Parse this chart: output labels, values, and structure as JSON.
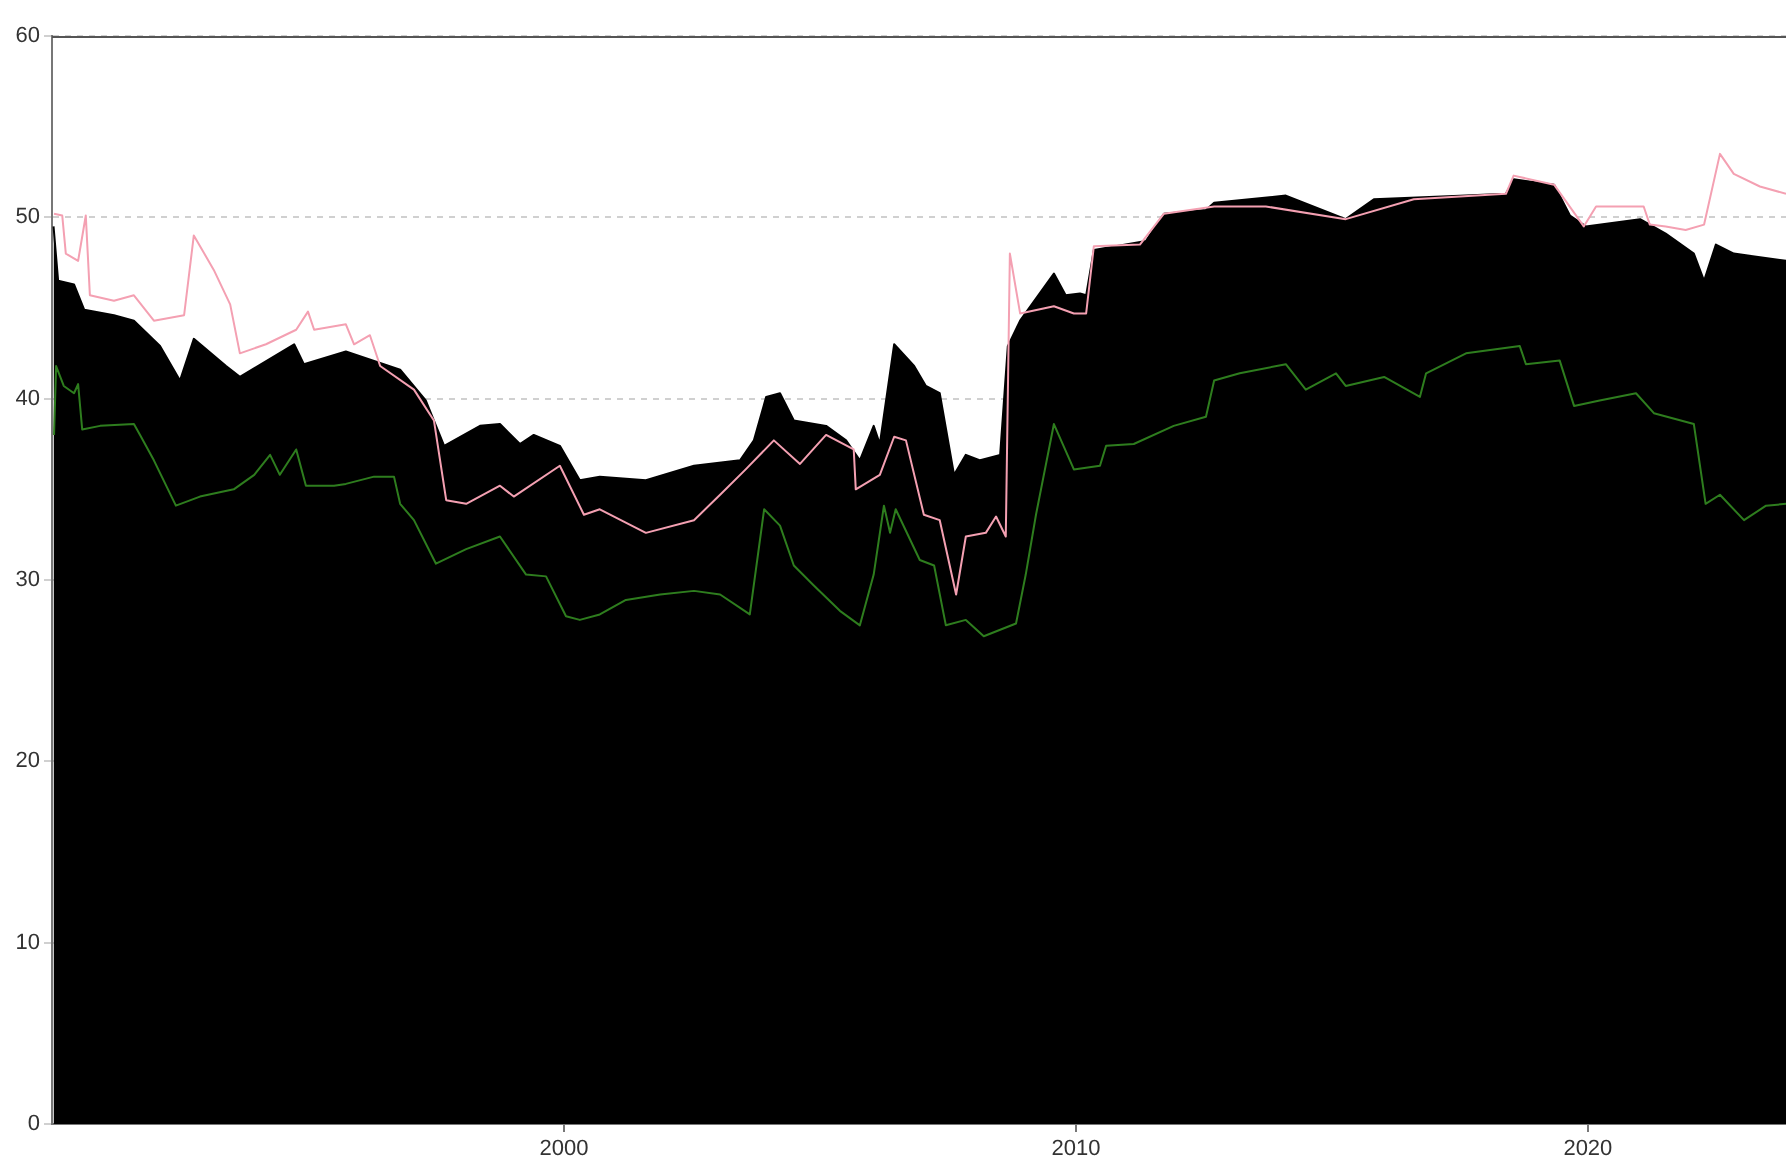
{
  "chart_data": {
    "type": "line",
    "xlim": [
      1990,
      2023.87
    ],
    "xticks": [
      2000,
      2010,
      2020
    ],
    "ylim": [
      0,
      60
    ],
    "yticks": [
      0,
      10,
      20,
      30,
      40,
      50,
      60
    ],
    "grid": "y",
    "legend": false,
    "marker": "none",
    "line_style": "solid",
    "series": [
      {
        "type": "area",
        "color": "#000000",
        "x": [
          1990.03,
          1990.12,
          1990.43,
          1990.63,
          1991.21,
          1991.6,
          1992.11,
          1992.5,
          1992.77,
          1993.4,
          1993.67,
          1994.73,
          1994.92,
          1995.74,
          1996.8,
          1997.3,
          1997.66,
          1998.36,
          1998.75,
          1999.14,
          1999.41,
          1999.92,
          2000.31,
          2000.7,
          2001.6,
          2002.54,
          2003.44,
          2003.71,
          2003.95,
          2004.22,
          2004.49,
          2005.12,
          2005.51,
          2005.78,
          2006.05,
          2006.17,
          2006.45,
          2006.84,
          2007.07,
          2007.34,
          2007.62,
          2007.85,
          2008.13,
          2008.52,
          2008.67,
          2008.91,
          2009.57,
          2009.8,
          2010.08,
          2010.2,
          2010.35,
          2011.37,
          2011.72,
          2012.54,
          2012.7,
          2014.1,
          2015.27,
          2015.82,
          2017.62,
          2018.4,
          2018.55,
          2019.34,
          2019.65,
          2019.96,
          2021.02,
          2021.52,
          2022.07,
          2022.27,
          2022.5,
          2022.85,
          2023.87
        ],
        "values": [
          49.5,
          46.5,
          46.3,
          44.9,
          44.6,
          44.3,
          42.9,
          41.0,
          43.3,
          41.8,
          41.2,
          43.0,
          41.9,
          42.6,
          41.6,
          39.9,
          37.4,
          38.5,
          38.6,
          37.5,
          38.0,
          37.4,
          35.5,
          35.7,
          35.5,
          36.3,
          36.6,
          37.7,
          40.1,
          40.3,
          38.8,
          38.5,
          37.7,
          36.6,
          38.5,
          37.5,
          43.0,
          41.8,
          40.7,
          40.3,
          35.8,
          36.9,
          36.6,
          36.9,
          42.9,
          44.3,
          46.9,
          45.7,
          45.8,
          45.7,
          48.2,
          48.7,
          50.2,
          50.4,
          50.8,
          51.2,
          49.9,
          51.0,
          51.2,
          51.3,
          52.1,
          51.8,
          50.1,
          49.5,
          49.9,
          49.1,
          48.0,
          46.5,
          48.5,
          48.0,
          47.6
        ]
      },
      {
        "color": "#f4a0b2",
        "x": [
          1990.04,
          1990.2,
          1990.27,
          1990.51,
          1990.66,
          1990.74,
          1991.21,
          1991.6,
          1991.99,
          1992.58,
          1992.77,
          1993.16,
          1993.48,
          1993.67,
          1994.18,
          1994.77,
          1995.0,
          1995.12,
          1995.74,
          1995.9,
          1996.21,
          1996.41,
          1997.07,
          1997.46,
          1997.7,
          1998.09,
          1998.75,
          1999.02,
          1999.92,
          2000.39,
          2000.7,
          2001.6,
          2002.54,
          2003.05,
          2003.55,
          2004.1,
          2004.61,
          2005.12,
          2005.66,
          2005.7,
          2006.17,
          2006.45,
          2006.68,
          2007.03,
          2007.34,
          2007.66,
          2007.85,
          2008.24,
          2008.44,
          2008.63,
          2008.71,
          2008.91,
          2009.57,
          2009.96,
          2010.2,
          2010.35,
          2011.25,
          2011.72,
          2012.7,
          2013.71,
          2015.27,
          2016.6,
          2018.4,
          2018.55,
          2019.34,
          2019.92,
          2020.16,
          2021.09,
          2021.21,
          2021.52,
          2021.91,
          2022.27,
          2022.58,
          2022.85,
          2023.36,
          2023.87
        ],
        "values": [
          50.2,
          50.1,
          48.0,
          47.6,
          50.1,
          45.7,
          45.4,
          45.7,
          44.3,
          44.6,
          49.0,
          47.1,
          45.2,
          42.5,
          43.0,
          43.8,
          44.8,
          43.8,
          44.1,
          43.0,
          43.5,
          41.8,
          40.5,
          38.8,
          34.4,
          34.2,
          35.2,
          34.6,
          36.3,
          33.6,
          33.9,
          32.6,
          33.3,
          34.7,
          36.1,
          37.7,
          36.4,
          38.0,
          37.2,
          35.0,
          35.8,
          37.9,
          37.7,
          33.6,
          33.3,
          29.2,
          32.4,
          32.6,
          33.5,
          32.4,
          48.0,
          44.7,
          45.1,
          44.7,
          44.7,
          48.4,
          48.5,
          50.2,
          50.6,
          50.6,
          49.9,
          51.0,
          51.3,
          52.3,
          51.8,
          49.5,
          50.6,
          50.6,
          49.6,
          49.5,
          49.3,
          49.6,
          53.5,
          52.4,
          51.7,
          51.3
        ]
      },
      {
        "color": "#2e7d1e",
        "x": [
          1990.04,
          1990.08,
          1990.23,
          1990.43,
          1990.51,
          1990.59,
          1990.94,
          1991.6,
          1991.72,
          1991.99,
          1992.42,
          1992.89,
          1993.55,
          1993.95,
          1994.26,
          1994.45,
          1994.77,
          1994.96,
          1995.51,
          1995.74,
          1996.29,
          1996.68,
          1996.8,
          1997.07,
          1997.5,
          1998.09,
          1998.75,
          1999.26,
          1999.65,
          2000.04,
          2000.31,
          2000.7,
          2001.21,
          2001.88,
          2002.54,
          2003.05,
          2003.63,
          2003.91,
          2004.22,
          2004.49,
          2004.88,
          2005.39,
          2005.78,
          2006.05,
          2006.25,
          2006.37,
          2006.48,
          2006.95,
          2007.23,
          2007.46,
          2007.85,
          2008.2,
          2008.83,
          2009.02,
          2009.22,
          2009.57,
          2009.96,
          2010.47,
          2010.59,
          2011.13,
          2011.91,
          2012.54,
          2012.7,
          2013.2,
          2014.1,
          2014.49,
          2015.08,
          2015.27,
          2016.02,
          2016.72,
          2016.84,
          2017.62,
          2018.67,
          2018.79,
          2019.45,
          2019.73,
          2020.23,
          2020.94,
          2021.29,
          2022.07,
          2022.3,
          2022.58,
          2023.05,
          2023.48,
          2023.87
        ],
        "values": [
          38.0,
          41.8,
          40.7,
          40.3,
          40.8,
          38.3,
          38.5,
          38.6,
          38.0,
          36.6,
          34.1,
          34.6,
          35.0,
          35.8,
          36.9,
          35.8,
          37.2,
          35.2,
          35.2,
          35.3,
          35.7,
          35.7,
          34.2,
          33.3,
          30.9,
          31.7,
          32.4,
          30.3,
          30.2,
          28.0,
          27.8,
          28.1,
          28.9,
          29.2,
          29.4,
          29.2,
          28.1,
          33.9,
          33.0,
          30.8,
          29.7,
          28.3,
          27.5,
          30.3,
          34.1,
          32.6,
          33.9,
          31.1,
          30.8,
          27.5,
          27.8,
          26.9,
          27.6,
          30.3,
          33.6,
          38.6,
          36.1,
          36.3,
          37.4,
          37.5,
          38.5,
          39.0,
          41.0,
          41.4,
          41.9,
          40.5,
          41.4,
          40.7,
          41.2,
          40.1,
          41.4,
          42.5,
          42.9,
          41.9,
          42.1,
          39.6,
          39.9,
          40.3,
          39.2,
          38.6,
          34.2,
          34.7,
          33.3,
          34.1,
          34.2
        ]
      }
    ]
  }
}
